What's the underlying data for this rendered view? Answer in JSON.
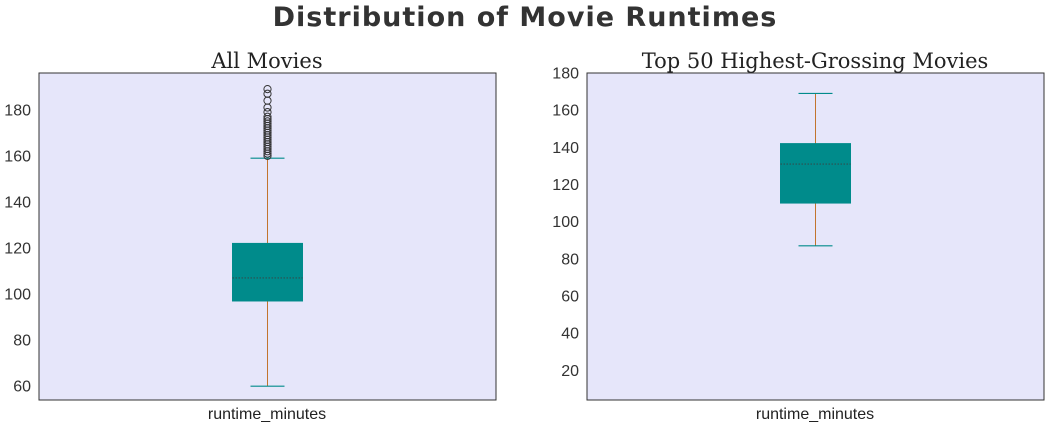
{
  "suptitle": "Distribution of Movie Runtimes",
  "colors": {
    "plot_bg": "#e6e6fa",
    "box_fill": "#008b8b",
    "whisker": "#c2742e",
    "cap": "#008b8b",
    "median": "#2f4f4f",
    "flier_edge": "#333333"
  },
  "chart_data": [
    {
      "type": "box",
      "title": "All Movies",
      "xlabel": "runtime_minutes",
      "category": "runtime_minutes",
      "ylim": [
        54,
        196
      ],
      "yticks": [
        60,
        80,
        100,
        120,
        140,
        160,
        180
      ],
      "yticklabels": [
        "60",
        "80",
        "100",
        "120",
        "140",
        "160",
        "180"
      ],
      "whisker_low": 60,
      "q1": 97,
      "median": 107,
      "q3": 122,
      "whisker_high": 159,
      "outliers": [
        160,
        161,
        162,
        163,
        164,
        165,
        166,
        167,
        168,
        169,
        170,
        171,
        172,
        173,
        174,
        175,
        176,
        177,
        179,
        181,
        184,
        187,
        189
      ],
      "grid": false,
      "legend": "none"
    },
    {
      "type": "box",
      "title": "Top 50 Highest-Grossing Movies",
      "xlabel": "runtime_minutes",
      "category": "runtime_minutes",
      "ylim": [
        4,
        180
      ],
      "yticks": [
        20,
        40,
        60,
        80,
        100,
        120,
        140,
        160,
        180
      ],
      "yticklabels": [
        "20",
        "40",
        "60",
        "80",
        "100",
        "120",
        "140",
        "160",
        "180"
      ],
      "whisker_low": 87,
      "q1": 110,
      "median": 131,
      "q3": 142,
      "whisker_high": 169,
      "outliers": [],
      "grid": false,
      "legend": "none"
    }
  ]
}
